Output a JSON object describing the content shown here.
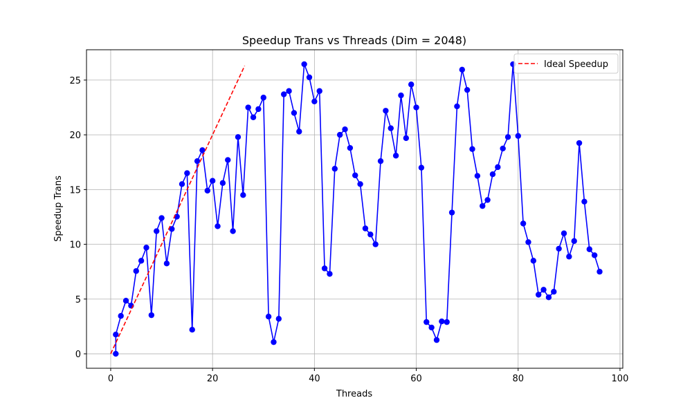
{
  "chart_data": {
    "type": "line",
    "title": "Speedup Trans vs Threads (Dim = 2048)",
    "x_label": "Threads",
    "y_label": "Speedup Trans",
    "xlim": [
      -4.75,
      100.55
    ],
    "ylim": [
      -1.32,
      27.77
    ],
    "xticks": [
      0,
      20,
      40,
      60,
      80,
      100
    ],
    "yticks": [
      0,
      5,
      10,
      15,
      20,
      25
    ],
    "grid": true,
    "legend": "upper right",
    "series": [
      {
        "color": "#0000ff",
        "marker": "circle",
        "x": [
          1,
          1,
          2,
          3,
          4,
          5,
          6,
          7,
          8,
          9,
          10,
          11,
          12,
          13,
          14,
          15,
          16,
          17,
          18,
          19,
          20,
          21,
          22,
          23,
          24,
          25,
          26,
          27,
          28,
          29,
          30,
          31,
          32,
          33,
          34,
          35,
          36,
          37,
          38,
          39,
          40,
          41,
          42,
          43,
          44,
          45,
          46,
          47,
          48,
          49,
          50,
          51,
          52,
          53,
          54,
          55,
          56,
          57,
          58,
          59,
          60,
          61,
          62,
          63,
          64,
          65,
          66,
          67,
          68,
          69,
          70,
          71,
          72,
          73,
          74,
          75,
          76,
          77,
          78,
          79,
          80,
          81,
          82,
          83,
          84,
          85,
          86,
          87,
          88,
          89,
          90,
          91,
          92,
          93,
          94,
          95,
          96
        ],
        "values": [
          0,
          1.76,
          3.46,
          4.85,
          4.4,
          7.56,
          8.5,
          9.7,
          3.53,
          11.2,
          12.4,
          8.25,
          11.4,
          12.53,
          15.5,
          16.5,
          2.2,
          17.6,
          18.6,
          14.9,
          15.8,
          11.65,
          15.6,
          17.7,
          11.2,
          19.8,
          14.5,
          22.5,
          21.6,
          22.35,
          23.4,
          3.4,
          1.07,
          3.2,
          23.7,
          24.0,
          22.0,
          20.3,
          26.45,
          25.25,
          23.05,
          24.0,
          7.8,
          7.3,
          16.9,
          20.0,
          20.5,
          18.8,
          16.3,
          15.5,
          11.45,
          10.9,
          10.0,
          17.6,
          22.2,
          20.6,
          18.1,
          23.6,
          19.7,
          24.6,
          22.5,
          17.0,
          2.9,
          2.4,
          1.26,
          2.96,
          2.9,
          12.9,
          22.6,
          25.95,
          24.1,
          18.7,
          16.25,
          13.5,
          14.05,
          16.4,
          17.05,
          18.75,
          19.8,
          26.45,
          19.9,
          11.9,
          10.2,
          8.5,
          5.4,
          5.85,
          5.16,
          5.67,
          9.6,
          11.0,
          8.88,
          10.3,
          19.25,
          13.9,
          9.55,
          9.0,
          7.5
        ]
      },
      {
        "name": "Ideal Speedup",
        "color": "#ff0000",
        "dashed": true,
        "x": [
          0,
          26.3
        ],
        "values": [
          0,
          26.3
        ]
      }
    ]
  }
}
